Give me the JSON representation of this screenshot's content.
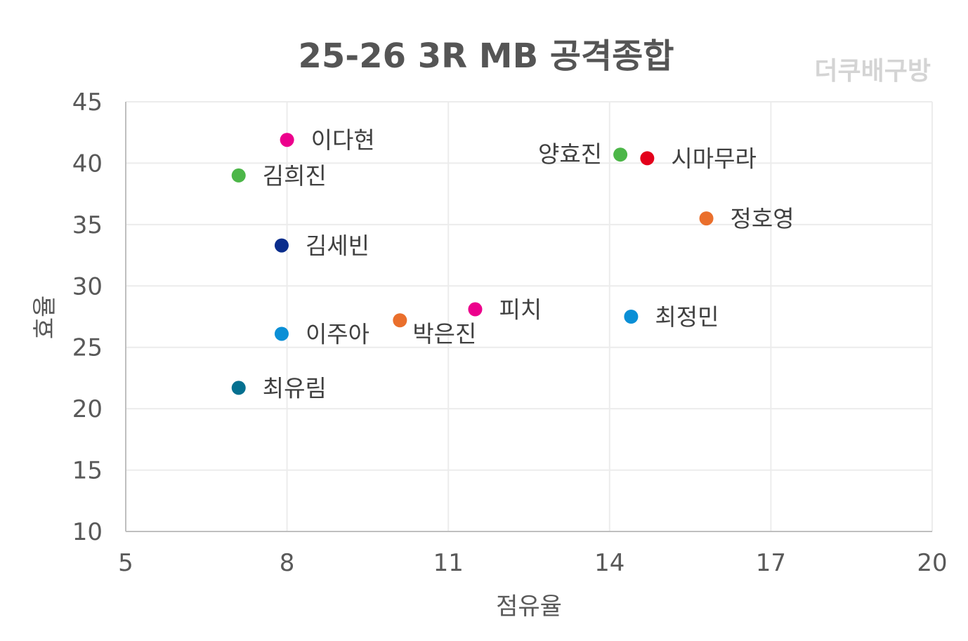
{
  "chart_data": {
    "type": "scatter",
    "title": "25-26  3R MB 공격종합",
    "watermark": "더쿠배구방",
    "xlabel": "점유율",
    "ylabel": "효율",
    "xlim": [
      5,
      20
    ],
    "ylim": [
      10,
      45
    ],
    "xticks": [
      5,
      8,
      11,
      14,
      17,
      20
    ],
    "yticks": [
      10,
      15,
      20,
      25,
      30,
      35,
      40,
      45
    ],
    "grid": true,
    "points": [
      {
        "label": "이다현",
        "x": 8.0,
        "y": 41.9,
        "color": "#ec008c",
        "label_side": "right"
      },
      {
        "label": "김희진",
        "x": 7.1,
        "y": 39.0,
        "color": "#4cb648",
        "label_side": "right"
      },
      {
        "label": "김세빈",
        "x": 7.9,
        "y": 33.3,
        "color": "#0a2d8c",
        "label_side": "right"
      },
      {
        "label": "이주아",
        "x": 7.9,
        "y": 26.1,
        "color": "#0a8fd6",
        "label_side": "right"
      },
      {
        "label": "최유림",
        "x": 7.1,
        "y": 21.7,
        "color": "#047090",
        "label_side": "right"
      },
      {
        "label": "박은진",
        "x": 10.1,
        "y": 27.2,
        "color": "#ea6f2c",
        "label_side": "below-right"
      },
      {
        "label": "피치",
        "x": 11.5,
        "y": 28.1,
        "color": "#ec008c",
        "label_side": "right"
      },
      {
        "label": "양효진",
        "x": 14.2,
        "y": 40.7,
        "color": "#4cb648",
        "label_side": "left"
      },
      {
        "label": "시마무라",
        "x": 14.7,
        "y": 40.4,
        "color": "#e3001b",
        "label_side": "right"
      },
      {
        "label": "정호영",
        "x": 15.8,
        "y": 35.5,
        "color": "#ea6f2c",
        "label_side": "right"
      },
      {
        "label": "최정민",
        "x": 14.4,
        "y": 27.5,
        "color": "#0a8fd6",
        "label_side": "right"
      }
    ]
  }
}
